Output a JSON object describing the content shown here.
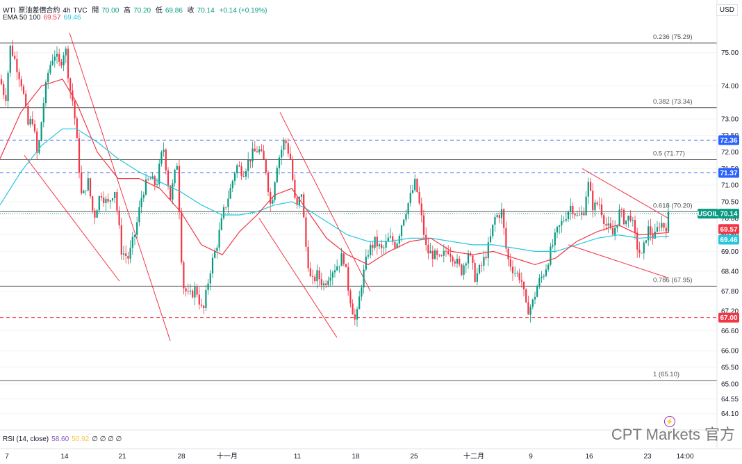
{
  "header": {
    "symbol": "WTI",
    "description": "原油差價合約",
    "timeframe": "4h",
    "source": "TVC",
    "open_label": "開",
    "open": "70.00",
    "high_label": "高",
    "high": "70.20",
    "low_label": "低",
    "low": "69.86",
    "close_label": "收",
    "close": "70.14",
    "change": "+0.14 (+0.19%)",
    "ema_label": "EMA 50 100",
    "ema50": "69.57",
    "ema100": "69.46"
  },
  "rsi_legend": {
    "label": "RSI (14, close)",
    "value1": "58.60",
    "value2": "50.92",
    "dots": "∅ ∅ ∅ ∅"
  },
  "currency": "USD",
  "watermark": "CPT Markets 官方",
  "colors": {
    "up": "#089981",
    "down": "#f23645",
    "ema50": "#f23645",
    "ema100": "#26c6da",
    "fib": "#555555",
    "badge_blue": "#2962ff"
  },
  "chart_data": {
    "type": "candlestick",
    "y_axis": {
      "range": [
        63.8,
        75.75
      ],
      "ticks": [
        "75.00",
        "74.00",
        "73.00",
        "72.50",
        "72.00",
        "71.50",
        "71.00",
        "70.50",
        "70.00",
        "69.50",
        "69.00",
        "68.40",
        "67.80",
        "67.20",
        "66.60",
        "66.00",
        "65.50",
        "65.00",
        "64.55",
        "64.10"
      ]
    },
    "x_axis": {
      "ticks": [
        "7",
        "14",
        "21",
        "28",
        "十一月",
        "11",
        "18",
        "25",
        "十二月",
        "9",
        "16",
        "23",
        "14:00"
      ]
    },
    "fib_levels": [
      {
        "label": "0.236 (75.29)",
        "value": 75.29
      },
      {
        "label": "0.382 (73.34)",
        "value": 73.34
      },
      {
        "label": "0.5 (71.77)",
        "value": 71.77
      },
      {
        "label": "0.618 (70.20)",
        "value": 70.2
      },
      {
        "label": "0.786 (67.95)",
        "value": 67.95
      },
      {
        "label": "1 (65.10)",
        "value": 65.1
      }
    ],
    "horizontal_lines": [
      {
        "value": 72.36,
        "style": "dashed",
        "color": "#2962ff",
        "badge": "72.36"
      },
      {
        "value": 71.37,
        "style": "dashed",
        "color": "#2962ff",
        "badge": "71.37"
      },
      {
        "value": 67.0,
        "style": "dashed",
        "color": "#f23645",
        "badge": "67.00"
      },
      {
        "value": 70.14,
        "style": "dotted",
        "color": "#089981"
      }
    ],
    "price_badges": [
      {
        "label": "USOIL",
        "value": "70.14",
        "price": 70.14,
        "color": "#089981"
      },
      {
        "value": "69.57",
        "price": 69.57,
        "color": "#f23645"
      },
      {
        "value": "69.46",
        "price": 69.46,
        "color": "#26c6da"
      }
    ],
    "path_points": [
      [
        0,
        74.2
      ],
      [
        8,
        73.6
      ],
      [
        15,
        75.2
      ],
      [
        24,
        74.6
      ],
      [
        32,
        74.0
      ],
      [
        40,
        72.8
      ],
      [
        47,
        73.0
      ],
      [
        54,
        71.8
      ],
      [
        62,
        73.4
      ],
      [
        70,
        74.5
      ],
      [
        78,
        75.0
      ],
      [
        86,
        74.6
      ],
      [
        94,
        75.2
      ],
      [
        100,
        74.0
      ],
      [
        106,
        73.4
      ],
      [
        112,
        72.0
      ],
      [
        118,
        70.5
      ],
      [
        126,
        71.2
      ],
      [
        135,
        70.0
      ],
      [
        145,
        70.8
      ],
      [
        155,
        70.4
      ],
      [
        165,
        70.9
      ],
      [
        175,
        69.0
      ],
      [
        185,
        68.8
      ],
      [
        195,
        69.6
      ],
      [
        205,
        70.8
      ],
      [
        215,
        71.2
      ],
      [
        225,
        71.0
      ],
      [
        235,
        72.2
      ],
      [
        245,
        70.6
      ],
      [
        255,
        71.7
      ],
      [
        263,
        68.0
      ],
      [
        272,
        67.6
      ],
      [
        282,
        67.9
      ],
      [
        292,
        67.1
      ],
      [
        302,
        68.4
      ],
      [
        312,
        69.2
      ],
      [
        322,
        70.2
      ],
      [
        332,
        70.9
      ],
      [
        340,
        71.6
      ],
      [
        350,
        71.4
      ],
      [
        362,
        71.9
      ],
      [
        372,
        72.1
      ],
      [
        382,
        71.6
      ],
      [
        390,
        70.3
      ],
      [
        398,
        71.6
      ],
      [
        410,
        72.4
      ],
      [
        418,
        71.8
      ],
      [
        426,
        70.2
      ],
      [
        434,
        70.8
      ],
      [
        440,
        69.2
      ],
      [
        448,
        68.0
      ],
      [
        456,
        68.3
      ],
      [
        466,
        68.0
      ],
      [
        476,
        68.4
      ],
      [
        486,
        68.6
      ],
      [
        494,
        68.9
      ],
      [
        502,
        67.8
      ],
      [
        512,
        66.8
      ],
      [
        520,
        68.0
      ],
      [
        530,
        69.0
      ],
      [
        540,
        69.3
      ],
      [
        550,
        69.0
      ],
      [
        560,
        69.4
      ],
      [
        570,
        69.2
      ],
      [
        580,
        70.0
      ],
      [
        590,
        70.6
      ],
      [
        598,
        71.1
      ],
      [
        606,
        70.1
      ],
      [
        614,
        69.0
      ],
      [
        624,
        68.9
      ],
      [
        634,
        68.7
      ],
      [
        644,
        69.1
      ],
      [
        654,
        68.8
      ],
      [
        664,
        68.4
      ],
      [
        674,
        69.0
      ],
      [
        684,
        68.2
      ],
      [
        694,
        68.6
      ],
      [
        704,
        69.2
      ],
      [
        712,
        70.0
      ],
      [
        722,
        70.2
      ],
      [
        730,
        68.8
      ],
      [
        740,
        68.4
      ],
      [
        750,
        68.2
      ],
      [
        758,
        67.2
      ],
      [
        766,
        67.4
      ],
      [
        774,
        68.0
      ],
      [
        784,
        68.4
      ],
      [
        794,
        69.1
      ],
      [
        802,
        69.6
      ],
      [
        812,
        70.0
      ],
      [
        822,
        70.4
      ],
      [
        832,
        70.0
      ],
      [
        840,
        70.2
      ],
      [
        846,
        71.1
      ],
      [
        854,
        70.3
      ],
      [
        862,
        70.5
      ],
      [
        872,
        69.8
      ],
      [
        882,
        69.5
      ],
      [
        892,
        70.2
      ],
      [
        900,
        69.9
      ],
      [
        908,
        70.1
      ],
      [
        916,
        69.2
      ],
      [
        924,
        68.8
      ],
      [
        932,
        69.7
      ],
      [
        942,
        69.4
      ],
      [
        950,
        69.9
      ],
      [
        958,
        69.7
      ],
      [
        963,
        70.14
      ]
    ],
    "ema50_points": [
      [
        0,
        71.8
      ],
      [
        30,
        73.2
      ],
      [
        60,
        74.0
      ],
      [
        90,
        74.2
      ],
      [
        110,
        73.5
      ],
      [
        140,
        72.0
      ],
      [
        170,
        71.2
      ],
      [
        200,
        71.2
      ],
      [
        230,
        70.9
      ],
      [
        260,
        70.2
      ],
      [
        290,
        69.2
      ],
      [
        320,
        68.9
      ],
      [
        345,
        69.6
      ],
      [
        370,
        70.1
      ],
      [
        395,
        70.7
      ],
      [
        420,
        70.9
      ],
      [
        440,
        70.3
      ],
      [
        470,
        69.4
      ],
      [
        500,
        68.9
      ],
      [
        530,
        68.6
      ],
      [
        560,
        69.0
      ],
      [
        590,
        69.3
      ],
      [
        620,
        69.4
      ],
      [
        650,
        69.0
      ],
      [
        680,
        68.9
      ],
      [
        710,
        69.0
      ],
      [
        740,
        68.8
      ],
      [
        770,
        68.6
      ],
      [
        800,
        68.8
      ],
      [
        830,
        69.3
      ],
      [
        860,
        69.6
      ],
      [
        890,
        69.8
      ],
      [
        920,
        69.5
      ],
      [
        963,
        69.57
      ]
    ],
    "ema100_points": [
      [
        0,
        70.4
      ],
      [
        30,
        71.4
      ],
      [
        60,
        72.2
      ],
      [
        90,
        72.7
      ],
      [
        110,
        72.7
      ],
      [
        140,
        72.3
      ],
      [
        170,
        71.8
      ],
      [
        200,
        71.4
      ],
      [
        230,
        71.1
      ],
      [
        260,
        70.8
      ],
      [
        290,
        70.4
      ],
      [
        320,
        70.1
      ],
      [
        345,
        70.1
      ],
      [
        370,
        70.2
      ],
      [
        395,
        70.4
      ],
      [
        420,
        70.5
      ],
      [
        440,
        70.3
      ],
      [
        470,
        69.9
      ],
      [
        500,
        69.5
      ],
      [
        530,
        69.3
      ],
      [
        560,
        69.3
      ],
      [
        590,
        69.4
      ],
      [
        620,
        69.4
      ],
      [
        650,
        69.3
      ],
      [
        680,
        69.2
      ],
      [
        710,
        69.2
      ],
      [
        740,
        69.1
      ],
      [
        770,
        69.0
      ],
      [
        800,
        69.0
      ],
      [
        830,
        69.2
      ],
      [
        860,
        69.4
      ],
      [
        890,
        69.5
      ],
      [
        920,
        69.4
      ],
      [
        963,
        69.46
      ]
    ],
    "trend_lines": [
      [
        [
          100,
          75.6
        ],
        [
          245,
          66.3
        ]
      ],
      [
        [
          35,
          71.9
        ],
        [
          172,
          68.1
        ]
      ],
      [
        [
          403,
          73.2
        ],
        [
          533,
          67.8
        ]
      ],
      [
        [
          373,
          70.0
        ],
        [
          485,
          66.4
        ]
      ],
      [
        [
          838,
          71.5
        ],
        [
          962,
          70.0
        ]
      ],
      [
        [
          818,
          69.2
        ],
        [
          962,
          68.2
        ]
      ]
    ]
  }
}
